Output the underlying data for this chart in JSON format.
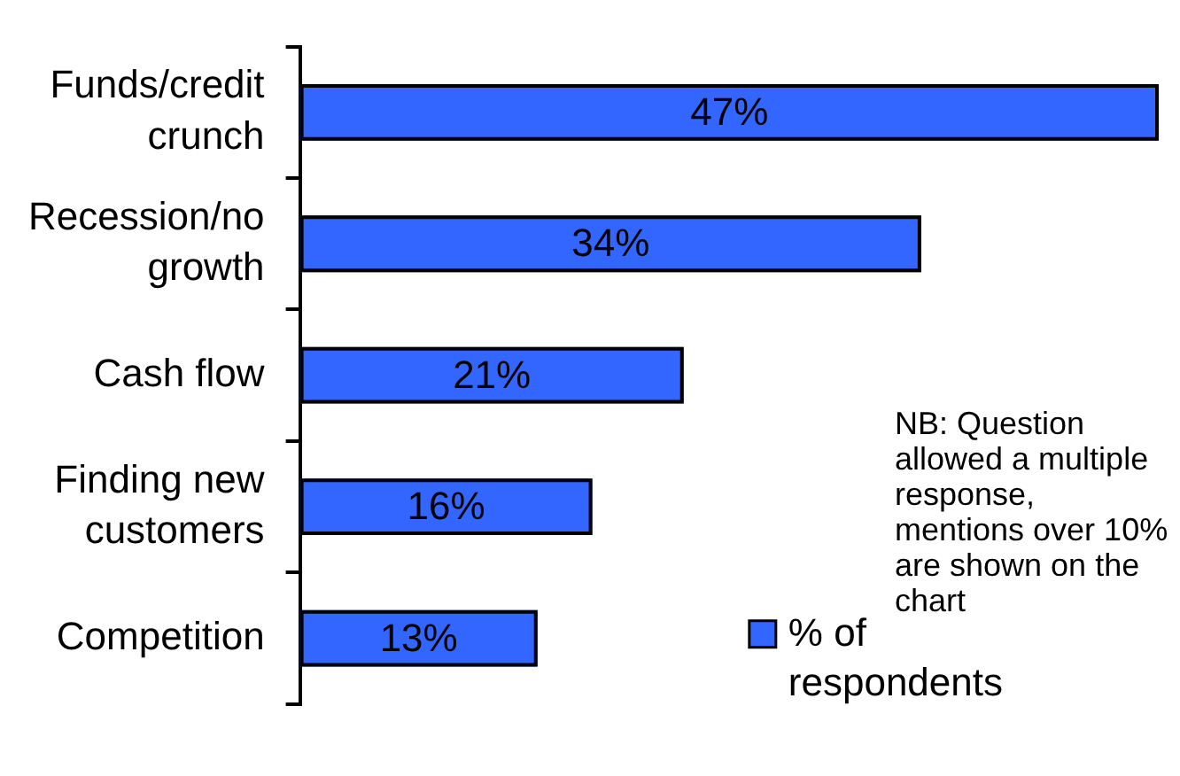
{
  "chart_data": {
    "type": "bar",
    "orientation": "horizontal",
    "categories": [
      "Funds/credit crunch",
      "Recession/no growth",
      "Cash flow",
      "Finding new customers",
      "Competition"
    ],
    "series": [
      {
        "name": "% of respondents",
        "color": "#3366ff",
        "values": [
          47,
          34,
          21,
          16,
          13
        ],
        "value_labels": [
          "47%",
          "34%",
          "21%",
          "16%",
          "13%"
        ]
      }
    ],
    "annotations": [
      "NB: Question allowed a multiple response, mentions over 10% are shown on the chart"
    ],
    "legend": "bottom right",
    "tick_labels": "y"
  }
}
